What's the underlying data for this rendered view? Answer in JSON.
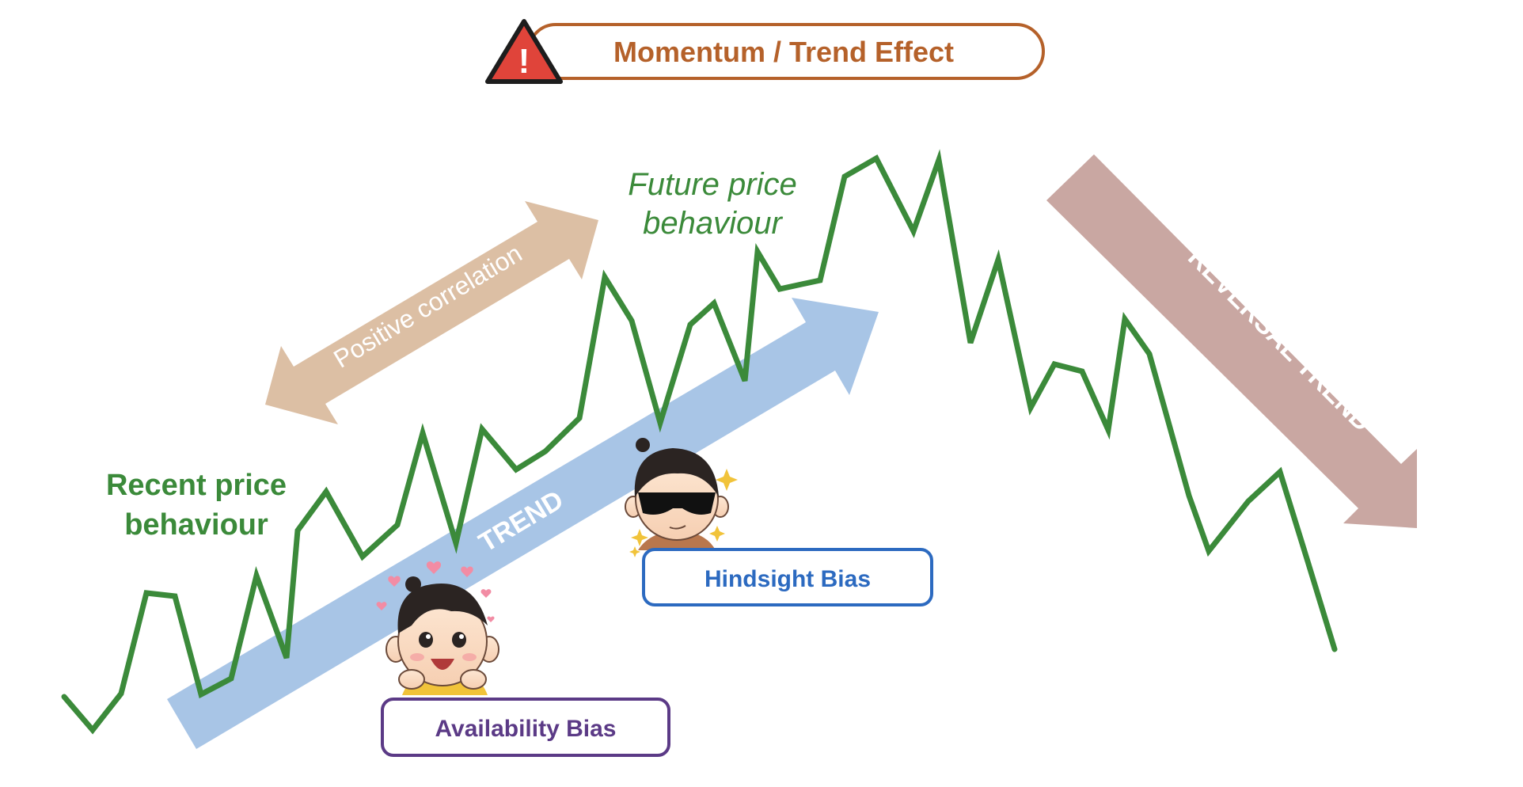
{
  "title": {
    "text": "Momentum / Trend Effect",
    "warning_glyph": "!",
    "icon": "warning-triangle-icon",
    "color": "#b5612a",
    "warning_color": "#e0443a"
  },
  "labels": {
    "recent_line1": "Recent price",
    "recent_line2": "behaviour",
    "future_line1": "Future price",
    "future_line2": "behaviour",
    "positive_correlation": "Positive correlation",
    "trend": "TREND",
    "reversal_trend": "REVERSAL TREND"
  },
  "badges": {
    "availability": {
      "text": "Availability Bias",
      "color": "#5b3a86",
      "icon": "smiling-person-icon"
    },
    "hindsight": {
      "text": "Hindsight Bias",
      "color": "#2c6ac0",
      "icon": "sunglasses-person-icon"
    }
  },
  "colors": {
    "price_line": "#3b8a3a",
    "trend_arrow": "#a8c5e6",
    "correlation_arrow": "#dcbfa4",
    "reversal_arrow": "#c9a7a2",
    "recent_text": "#3b8a3a",
    "future_text": "#3b8a3a"
  }
}
